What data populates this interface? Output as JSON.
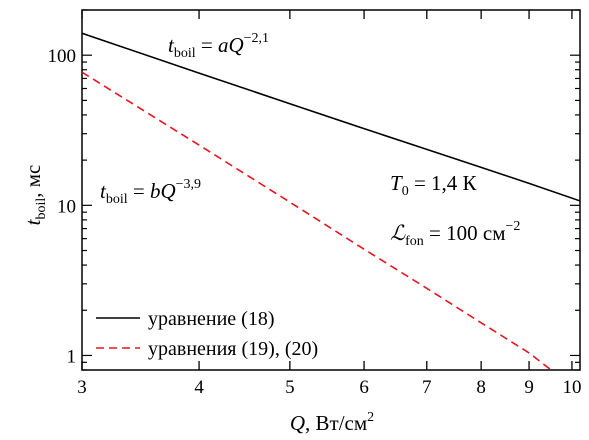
{
  "chart_data": {
    "type": "line",
    "title": "",
    "xlabel": {
      "main": "Q",
      "rest": ", Вт/см",
      "sup": "2"
    },
    "ylabel": {
      "main": "t",
      "sub": "boil",
      "rest": ", мс"
    },
    "xscale": "log",
    "yscale": "log",
    "xlim": [
      3,
      10.2
    ],
    "ylim": [
      0.8,
      200
    ],
    "x_ticks": [
      3,
      4,
      5,
      6,
      7,
      8,
      9,
      10
    ],
    "x_tick_labels": [
      "3",
      "4",
      "5",
      "6",
      "7",
      "8",
      "9",
      "10"
    ],
    "y_ticks": [
      1,
      10,
      100
    ],
    "y_tick_labels": [
      "1",
      "10",
      "100"
    ],
    "grid": false,
    "legend_position": "bottom-left",
    "series": [
      {
        "name": "уравнение (18)",
        "color": "#000000",
        "dash": "solid",
        "x": [
          3,
          4,
          5,
          6,
          7,
          8,
          9,
          10.2
        ],
        "y": [
          140,
          76,
          47.5,
          32.4,
          23.6,
          17.9,
          14.0,
          10.7
        ]
      },
      {
        "name": "уравнения (19), (20)",
        "color": "#e8141e",
        "dash": "dashed",
        "x": [
          3,
          4,
          5,
          6,
          7,
          8,
          9,
          9.5
        ],
        "y": [
          77,
          25.2,
          10.5,
          5.1,
          2.8,
          1.65,
          1.04,
          0.8
        ]
      }
    ],
    "annotations": {
      "law1": {
        "lhs": "t",
        "lhs_sub": "boil",
        "eq": " = ",
        "coef": "a",
        "var": "Q",
        "exp": "−2,1"
      },
      "law2": {
        "lhs": "t",
        "lhs_sub": "boil",
        "eq": " = ",
        "coef": "b",
        "var": "Q",
        "exp": "−3,9"
      },
      "param1": {
        "sym": "T",
        "sub": "0",
        "rest": " = 1,4 К"
      },
      "param2": {
        "sym": "ℒ",
        "sub": "fon",
        "rest": " = 100 см",
        "sup": "−2"
      }
    }
  }
}
